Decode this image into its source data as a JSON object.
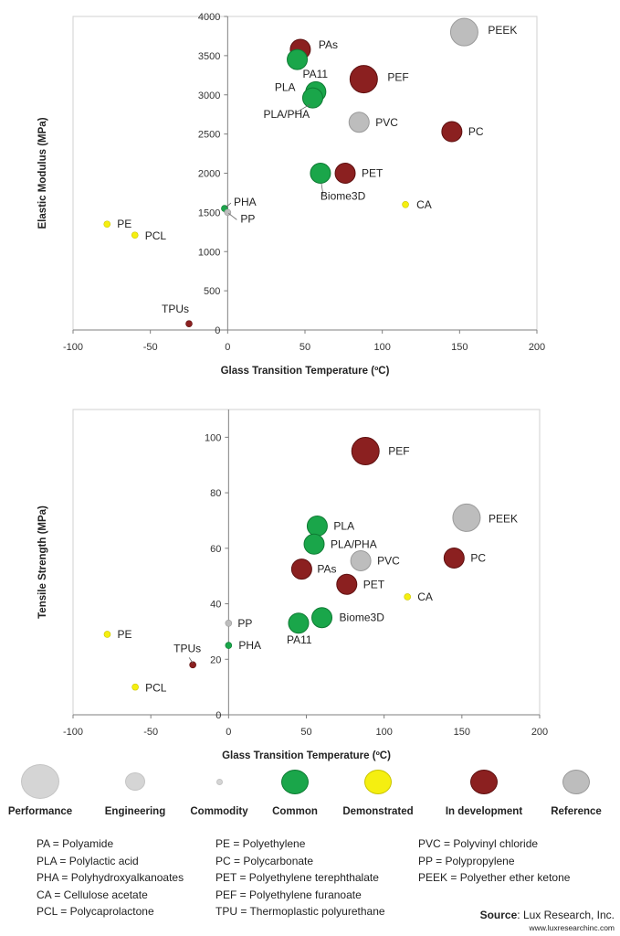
{
  "colors": {
    "common": "#1aa64a",
    "demonstrated": "#f5ef10",
    "in_development": "#8b2020",
    "reference": "#bdbdbd",
    "axis": "#7f7f7f",
    "tick_label": "#333333"
  },
  "chart_data": [
    {
      "type": "scatter",
      "title": "",
      "xlabel": "Glass Transition Temperature (ºC)",
      "ylabel": "Elastic Modulus (MPa)",
      "xlim": [
        -100,
        200
      ],
      "ylim": [
        0,
        4000
      ],
      "xticks": [
        -100,
        -50,
        0,
        50,
        100,
        150,
        200
      ],
      "yticks": [
        0,
        500,
        1000,
        1500,
        2000,
        2500,
        3000,
        3500,
        4000
      ],
      "grid": false,
      "points": [
        {
          "label": "PEEK",
          "x": 153,
          "y": 3800,
          "size": "performance",
          "status": "reference"
        },
        {
          "label": "PAs",
          "x": 47,
          "y": 3580,
          "size": "engineering",
          "status": "in_development"
        },
        {
          "label": "PA11",
          "x": 45,
          "y": 3450,
          "size": "engineering",
          "status": "common"
        },
        {
          "label": "PEF",
          "x": 88,
          "y": 3200,
          "size": "performance",
          "status": "in_development"
        },
        {
          "label": "PLA",
          "x": 57,
          "y": 3040,
          "size": "engineering",
          "status": "common"
        },
        {
          "label": "PLA/PHA",
          "x": 55,
          "y": 2960,
          "size": "engineering",
          "status": "common"
        },
        {
          "label": "PVC",
          "x": 85,
          "y": 2650,
          "size": "engineering",
          "status": "reference"
        },
        {
          "label": "PC",
          "x": 145,
          "y": 2530,
          "size": "engineering",
          "status": "in_development"
        },
        {
          "label": "PET",
          "x": 76,
          "y": 2000,
          "size": "engineering",
          "status": "in_development"
        },
        {
          "label": "Biome3D",
          "x": 60,
          "y": 2000,
          "size": "engineering",
          "status": "common"
        },
        {
          "label": "CA",
          "x": 115,
          "y": 1600,
          "size": "commodity",
          "status": "demonstrated"
        },
        {
          "label": "PHA",
          "x": -2,
          "y": 1550,
          "size": "commodity",
          "status": "common"
        },
        {
          "label": "PP",
          "x": 0,
          "y": 1500,
          "size": "commodity",
          "status": "reference"
        },
        {
          "label": "PE",
          "x": -78,
          "y": 1350,
          "size": "commodity",
          "status": "demonstrated"
        },
        {
          "label": "PCL",
          "x": -60,
          "y": 1210,
          "size": "commodity",
          "status": "demonstrated"
        },
        {
          "label": "TPUs",
          "x": -25,
          "y": 80,
          "size": "commodity",
          "status": "in_development"
        }
      ]
    },
    {
      "type": "scatter",
      "title": "",
      "xlabel": "Glass Transition Temperature (ºC)",
      "ylabel": "Tensile Strength (MPa)",
      "xlim": [
        -100,
        200
      ],
      "ylim": [
        0,
        110
      ],
      "xticks": [
        -100,
        -50,
        0,
        50,
        100,
        150,
        200
      ],
      "yticks": [
        0,
        20,
        40,
        60,
        80,
        100
      ],
      "grid": false,
      "points": [
        {
          "label": "PEF",
          "x": 88,
          "y": 95,
          "size": "performance",
          "status": "in_development"
        },
        {
          "label": "PEEK",
          "x": 153,
          "y": 71,
          "size": "performance",
          "status": "reference"
        },
        {
          "label": "PLA",
          "x": 57,
          "y": 68,
          "size": "engineering",
          "status": "common"
        },
        {
          "label": "PLA/PHA",
          "x": 55,
          "y": 61.5,
          "size": "engineering",
          "status": "common"
        },
        {
          "label": "PC",
          "x": 145,
          "y": 56.5,
          "size": "engineering",
          "status": "in_development"
        },
        {
          "label": "PVC",
          "x": 85,
          "y": 55.5,
          "size": "engineering",
          "status": "reference"
        },
        {
          "label": "PAs",
          "x": 47,
          "y": 52.5,
          "size": "engineering",
          "status": "in_development"
        },
        {
          "label": "PET",
          "x": 76,
          "y": 47,
          "size": "engineering",
          "status": "in_development"
        },
        {
          "label": "CA",
          "x": 115,
          "y": 42.5,
          "size": "commodity",
          "status": "demonstrated"
        },
        {
          "label": "Biome3D",
          "x": 60,
          "y": 35,
          "size": "engineering",
          "status": "common"
        },
        {
          "label": "PA11",
          "x": 45,
          "y": 33,
          "size": "engineering",
          "status": "common"
        },
        {
          "label": "PP",
          "x": 0,
          "y": 33,
          "size": "commodity",
          "status": "reference"
        },
        {
          "label": "PE",
          "x": -78,
          "y": 29,
          "size": "commodity",
          "status": "demonstrated"
        },
        {
          "label": "PHA",
          "x": 0,
          "y": 25,
          "size": "commodity",
          "status": "common"
        },
        {
          "label": "TPUs",
          "x": -23,
          "y": 18,
          "size": "commodity",
          "status": "in_development"
        },
        {
          "label": "PCL",
          "x": -60,
          "y": 10,
          "size": "commodity",
          "status": "demonstrated"
        }
      ]
    }
  ],
  "legend": {
    "items": [
      {
        "label": "Performance",
        "kind": "size",
        "size": "performance"
      },
      {
        "label": "Engineering",
        "kind": "size",
        "size": "engineering"
      },
      {
        "label": "Commodity",
        "kind": "size",
        "size": "commodity"
      },
      {
        "label": "Common",
        "kind": "status",
        "status": "common"
      },
      {
        "label": "Demonstrated",
        "kind": "status",
        "status": "demonstrated"
      },
      {
        "label": "In development",
        "kind": "status",
        "status": "in_development"
      },
      {
        "label": "Reference",
        "kind": "status",
        "status": "reference"
      }
    ]
  },
  "abbreviations": {
    "col1": [
      "PA = Polyamide",
      "PLA = Polylactic acid",
      "PHA = Polyhydroxyalkanoates",
      "CA = Cellulose acetate",
      "PCL = Polycaprolactone"
    ],
    "col2": [
      "PE = Polyethylene",
      "PC = Polycarbonate",
      "PET = Polyethylene terephthalate",
      "PEF = Polyethylene furanoate",
      "TPU = Thermoplastic polyurethane"
    ],
    "col3": [
      "PVC = Polyvinyl chloride",
      "PP = Polypropylene",
      "PEEK = Polyether ether ketone"
    ]
  },
  "source": {
    "label": "Source",
    "text": ": Lux Research, Inc.",
    "url": "www.luxresearchinc.com"
  }
}
